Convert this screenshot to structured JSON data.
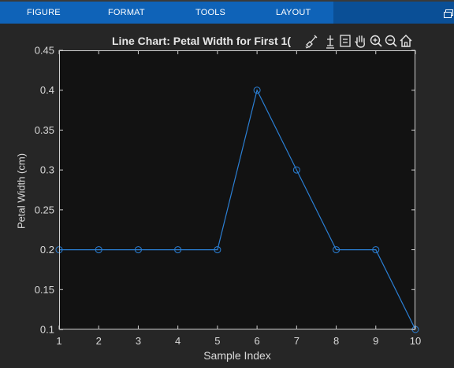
{
  "ribbon": {
    "tabs": [
      {
        "label": "FIGURE"
      },
      {
        "label": "FORMAT"
      },
      {
        "label": "TOOLS"
      },
      {
        "label": "LAYOUT"
      }
    ]
  },
  "toolbar": {
    "icons": [
      "brush-icon",
      "data-tips-icon",
      "legend-icon",
      "pan-icon",
      "zoom-in-icon",
      "zoom-out-icon",
      "home-icon"
    ]
  },
  "colors": {
    "ribbon": "#0f63b8",
    "background": "#262626",
    "axes_bg": "#121212",
    "line": "#2b7fd4"
  },
  "chart_data": {
    "type": "line",
    "title": "Line Chart: Petal Width for First 1(",
    "xlabel": "Sample Index",
    "ylabel": "Petal Width (cm)",
    "x": [
      1,
      2,
      3,
      4,
      5,
      6,
      7,
      8,
      9,
      10
    ],
    "series": [
      {
        "values": [
          0.2,
          0.2,
          0.2,
          0.2,
          0.2,
          0.4,
          0.3,
          0.2,
          0.2,
          0.1
        ]
      }
    ],
    "xlim": [
      1,
      10
    ],
    "ylim": [
      0.1,
      0.45
    ],
    "xticks": [
      "1",
      "2",
      "3",
      "4",
      "5",
      "6",
      "7",
      "8",
      "9",
      "10"
    ],
    "yticks": [
      "0.1",
      "0.15",
      "0.2",
      "0.25",
      "0.3",
      "0.35",
      "0.4",
      "0.45"
    ],
    "marker": "circle",
    "grid": false
  }
}
